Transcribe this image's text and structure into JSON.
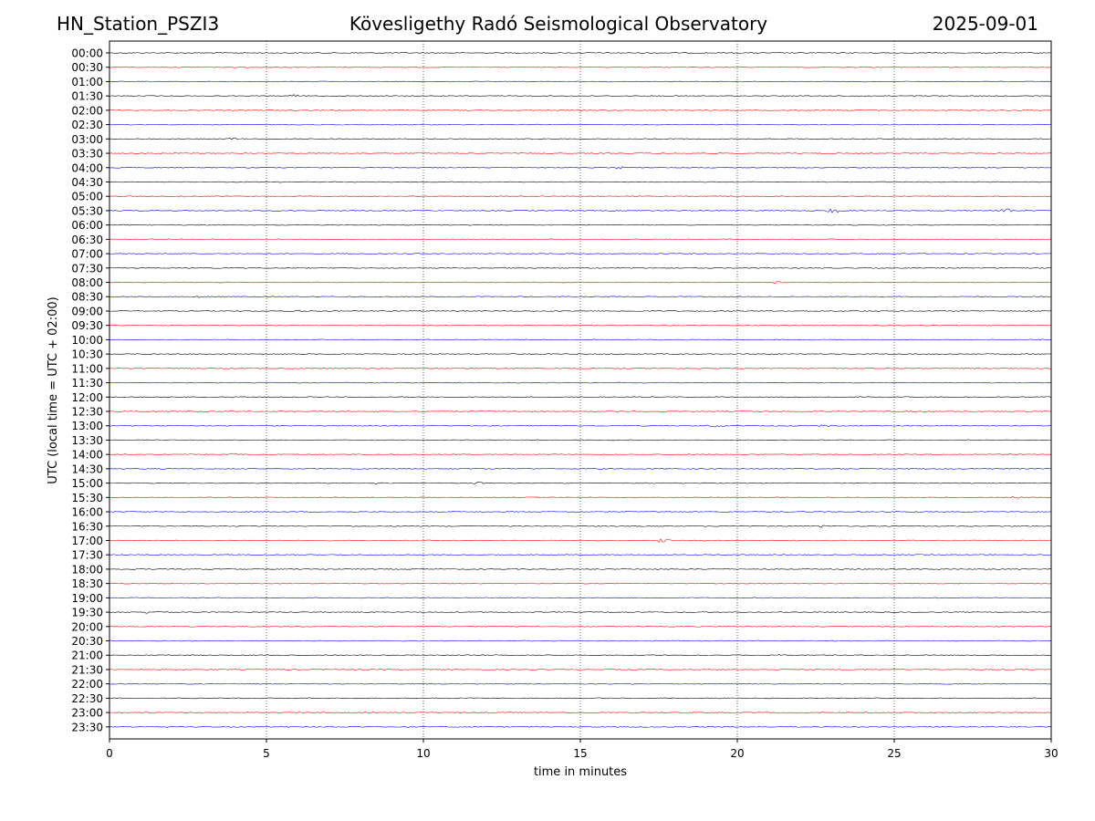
{
  "header": {
    "station": "HN_Station_PSZI3",
    "title": "Kövesligethy Radó Seismological Observatory",
    "date": "2025-09-01"
  },
  "chart_data": {
    "type": "line",
    "title": "Kövesligethy Radó Seismological Observatory",
    "xlabel": "time in minutes",
    "ylabel": "UTC (local time = UTC + 02:00)",
    "xlim": [
      0,
      30
    ],
    "x_ticks": [
      0,
      5,
      10,
      15,
      20,
      25,
      30
    ],
    "x_gridlines": [
      5,
      10,
      15,
      20,
      25
    ],
    "grid": "vertical dotted",
    "row_colors": [
      "#000000",
      "#ff0000",
      "#0000ff"
    ],
    "rows": [
      "00:00",
      "00:30",
      "01:00",
      "01:30",
      "02:00",
      "02:30",
      "03:00",
      "03:30",
      "04:00",
      "04:30",
      "05:00",
      "05:30",
      "06:00",
      "06:30",
      "07:00",
      "07:30",
      "08:00",
      "08:30",
      "09:00",
      "09:30",
      "10:00",
      "10:30",
      "11:00",
      "11:30",
      "12:00",
      "12:30",
      "13:00",
      "13:30",
      "14:00",
      "14:30",
      "15:00",
      "15:30",
      "16:00",
      "16:30",
      "17:00",
      "17:30",
      "18:00",
      "18:30",
      "19:00",
      "19:30",
      "20:00",
      "20:30",
      "21:00",
      "21:30",
      "22:00",
      "22:30",
      "23:00",
      "23:30"
    ],
    "events": [
      {
        "row": "01:30",
        "minute": 5.9,
        "amp": 1.5
      },
      {
        "row": "03:00",
        "minute": 4.0,
        "amp": 1.5
      },
      {
        "row": "03:30",
        "minute": 1.8,
        "amp": 1.2
      },
      {
        "row": "04:00",
        "minute": 16.2,
        "amp": 2.0
      },
      {
        "row": "05:00",
        "minute": 2.3,
        "amp": 1.2
      },
      {
        "row": "05:30",
        "minute": 23.1,
        "amp": 3.0
      },
      {
        "row": "05:30",
        "minute": 28.6,
        "amp": 3.0
      },
      {
        "row": "08:00",
        "minute": 21.3,
        "amp": 1.5
      },
      {
        "row": "08:30",
        "minute": 2.8,
        "amp": 1.0
      },
      {
        "row": "09:00",
        "minute": 6.2,
        "amp": 1.5
      },
      {
        "row": "13:00",
        "minute": 19.3,
        "amp": 2.0
      },
      {
        "row": "13:00",
        "minute": 22.8,
        "amp": 2.0
      },
      {
        "row": "14:00",
        "minute": 3.9,
        "amp": 1.5
      },
      {
        "row": "15:00",
        "minute": 8.5,
        "amp": 1.5
      },
      {
        "row": "15:00",
        "minute": 11.8,
        "amp": 1.5
      },
      {
        "row": "15:30",
        "minute": 28.8,
        "amp": 1.2
      },
      {
        "row": "16:30",
        "minute": 22.7,
        "amp": 1.5
      },
      {
        "row": "17:00",
        "minute": 17.6,
        "amp": 2.5
      },
      {
        "row": "18:30",
        "minute": 3.0,
        "amp": 1.5
      },
      {
        "row": "19:30",
        "minute": 1.3,
        "amp": 2.5
      },
      {
        "row": "21:00",
        "minute": 21.3,
        "amp": 1.2
      }
    ]
  }
}
